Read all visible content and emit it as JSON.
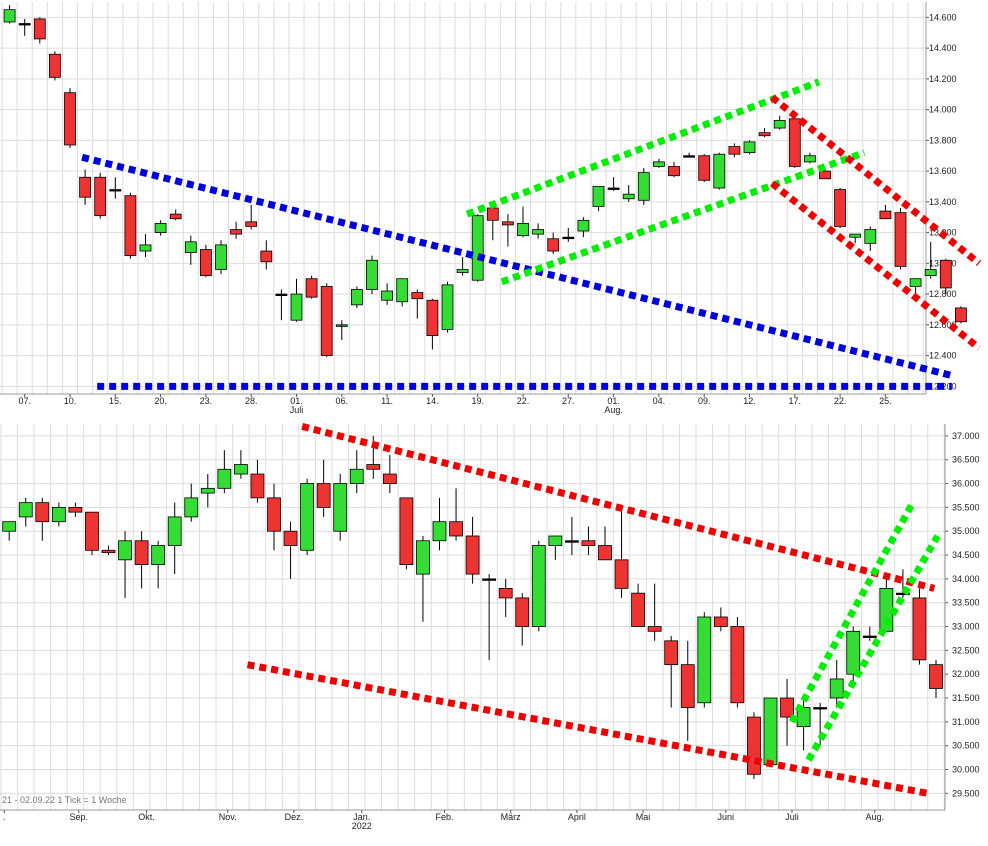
{
  "colors": {
    "up": "#33dd33",
    "down": "#ee3333",
    "wick": "#000000",
    "grid": "#dddddd",
    "blue_line": "#0000dd",
    "green_line": "#00ee00",
    "red_line": "#ee0000"
  },
  "chart_data": [
    {
      "type": "candlestick",
      "title": "",
      "ylim": [
        12150,
        14700
      ],
      "y_ticks": [
        14600,
        14400,
        14200,
        14000,
        13800,
        13600,
        13400,
        13200,
        13000,
        12800,
        12600,
        12400,
        12200
      ],
      "y_tick_labels": [
        "14.600",
        "14.400",
        "14.200",
        "14.000",
        "13.800",
        "13.600",
        "13.400",
        "13.200",
        "13.000",
        "12.800",
        "12.600",
        "12.400",
        "12.200"
      ],
      "x_tick_labels": [
        {
          "i": 1,
          "label": "07.",
          "sub": ""
        },
        {
          "i": 4,
          "label": "10.",
          "sub": ""
        },
        {
          "i": 7,
          "label": "15.",
          "sub": ""
        },
        {
          "i": 10,
          "label": "20.",
          "sub": ""
        },
        {
          "i": 13,
          "label": "23.",
          "sub": ""
        },
        {
          "i": 16,
          "label": "28.",
          "sub": ""
        },
        {
          "i": 19,
          "label": "01.",
          "sub": "Juli"
        },
        {
          "i": 22,
          "label": "06.",
          "sub": ""
        },
        {
          "i": 25,
          "label": "11.",
          "sub": ""
        },
        {
          "i": 28,
          "label": "14.",
          "sub": ""
        },
        {
          "i": 31,
          "label": "19.",
          "sub": ""
        },
        {
          "i": 34,
          "label": "22.",
          "sub": ""
        },
        {
          "i": 37,
          "label": "27.",
          "sub": ""
        },
        {
          "i": 40,
          "label": "01.",
          "sub": "Aug."
        },
        {
          "i": 43,
          "label": "04.",
          "sub": ""
        },
        {
          "i": 46,
          "label": "09.",
          "sub": ""
        },
        {
          "i": 49,
          "label": "12.",
          "sub": ""
        },
        {
          "i": 52,
          "label": "17.",
          "sub": ""
        },
        {
          "i": 55,
          "label": "22.",
          "sub": ""
        },
        {
          "i": 58,
          "label": "25.",
          "sub": ""
        }
      ],
      "candles": [
        {
          "o": 14570,
          "h": 14680,
          "l": 14560,
          "c": 14650
        },
        {
          "o": 14560,
          "h": 14590,
          "l": 14480,
          "c": 14560
        },
        {
          "o": 14590,
          "h": 14600,
          "l": 14430,
          "c": 14460
        },
        {
          "o": 14360,
          "h": 14380,
          "l": 14190,
          "c": 14210
        },
        {
          "o": 14110,
          "h": 14140,
          "l": 13750,
          "c": 13770
        },
        {
          "o": 13560,
          "h": 13610,
          "l": 13380,
          "c": 13430
        },
        {
          "o": 13560,
          "h": 13590,
          "l": 13290,
          "c": 13310
        },
        {
          "o": 13480,
          "h": 13560,
          "l": 13420,
          "c": 13480
        },
        {
          "o": 13440,
          "h": 13460,
          "l": 13030,
          "c": 13050
        },
        {
          "o": 13080,
          "h": 13190,
          "l": 13040,
          "c": 13120
        },
        {
          "o": 13200,
          "h": 13280,
          "l": 13180,
          "c": 13260
        },
        {
          "o": 13320,
          "h": 13350,
          "l": 13280,
          "c": 13290
        },
        {
          "o": 13070,
          "h": 13180,
          "l": 12990,
          "c": 13140
        },
        {
          "o": 13090,
          "h": 13120,
          "l": 12910,
          "c": 12920
        },
        {
          "o": 12960,
          "h": 13150,
          "l": 12930,
          "c": 13120
        },
        {
          "o": 13220,
          "h": 13270,
          "l": 13160,
          "c": 13190
        },
        {
          "o": 13270,
          "h": 13380,
          "l": 13220,
          "c": 13240
        },
        {
          "o": 13080,
          "h": 13150,
          "l": 12960,
          "c": 13010
        },
        {
          "o": 12800,
          "h": 12830,
          "l": 12630,
          "c": 12800
        },
        {
          "o": 12630,
          "h": 12900,
          "l": 12620,
          "c": 12800
        },
        {
          "o": 12900,
          "h": 12920,
          "l": 12770,
          "c": 12780
        },
        {
          "o": 12850,
          "h": 12870,
          "l": 12390,
          "c": 12400
        },
        {
          "o": 12600,
          "h": 12630,
          "l": 12500,
          "c": 12590
        },
        {
          "o": 12730,
          "h": 12850,
          "l": 12710,
          "c": 12830
        },
        {
          "o": 12830,
          "h": 13050,
          "l": 12800,
          "c": 13020
        },
        {
          "o": 12760,
          "h": 12870,
          "l": 12730,
          "c": 12820
        },
        {
          "o": 12750,
          "h": 12900,
          "l": 12720,
          "c": 12900
        },
        {
          "o": 12810,
          "h": 12830,
          "l": 12640,
          "c": 12770
        },
        {
          "o": 12760,
          "h": 12770,
          "l": 12440,
          "c": 12530
        },
        {
          "o": 12570,
          "h": 12880,
          "l": 12550,
          "c": 12860
        },
        {
          "o": 12940,
          "h": 13040,
          "l": 12920,
          "c": 12960
        },
        {
          "o": 12890,
          "h": 13320,
          "l": 12880,
          "c": 13310
        },
        {
          "o": 13360,
          "h": 13380,
          "l": 13150,
          "c": 13280
        },
        {
          "o": 13270,
          "h": 13320,
          "l": 13110,
          "c": 13250
        },
        {
          "o": 13180,
          "h": 13370,
          "l": 13170,
          "c": 13260
        },
        {
          "o": 13190,
          "h": 13260,
          "l": 13160,
          "c": 13220
        },
        {
          "o": 13160,
          "h": 13200,
          "l": 13060,
          "c": 13080
        },
        {
          "o": 13170,
          "h": 13230,
          "l": 13140,
          "c": 13170
        },
        {
          "o": 13210,
          "h": 13300,
          "l": 13170,
          "c": 13280
        },
        {
          "o": 13370,
          "h": 13500,
          "l": 13340,
          "c": 13500
        },
        {
          "o": 13490,
          "h": 13560,
          "l": 13470,
          "c": 13490
        },
        {
          "o": 13420,
          "h": 13510,
          "l": 13400,
          "c": 13450
        },
        {
          "o": 13410,
          "h": 13620,
          "l": 13380,
          "c": 13590
        },
        {
          "o": 13630,
          "h": 13680,
          "l": 13620,
          "c": 13660
        },
        {
          "o": 13630,
          "h": 13660,
          "l": 13560,
          "c": 13570
        },
        {
          "o": 13700,
          "h": 13720,
          "l": 13690,
          "c": 13700
        },
        {
          "o": 13700,
          "h": 13710,
          "l": 13530,
          "c": 13540
        },
        {
          "o": 13490,
          "h": 13720,
          "l": 13480,
          "c": 13710
        },
        {
          "o": 13760,
          "h": 13780,
          "l": 13690,
          "c": 13710
        },
        {
          "o": 13720,
          "h": 13800,
          "l": 13710,
          "c": 13790
        },
        {
          "o": 13850,
          "h": 13880,
          "l": 13820,
          "c": 13830
        },
        {
          "o": 13880,
          "h": 13960,
          "l": 13870,
          "c": 13930
        },
        {
          "o": 13940,
          "h": 13960,
          "l": 13620,
          "c": 13630
        },
        {
          "o": 13660,
          "h": 13720,
          "l": 13650,
          "c": 13700
        },
        {
          "o": 13600,
          "h": 13610,
          "l": 13550,
          "c": 13550
        },
        {
          "o": 13480,
          "h": 13490,
          "l": 13230,
          "c": 13240
        },
        {
          "o": 13170,
          "h": 13190,
          "l": 13130,
          "c": 13190
        },
        {
          "o": 13130,
          "h": 13240,
          "l": 13080,
          "c": 13220
        },
        {
          "o": 13340,
          "h": 13380,
          "l": 13300,
          "c": 13290
        },
        {
          "o": 13330,
          "h": 13360,
          "l": 12960,
          "c": 12980
        },
        {
          "o": 12850,
          "h": 12900,
          "l": 12800,
          "c": 12900
        },
        {
          "o": 12920,
          "h": 13140,
          "l": 12900,
          "c": 12960
        },
        {
          "o": 13020,
          "h": 13030,
          "l": 12800,
          "c": 12840
        },
        {
          "o": 12710,
          "h": 12720,
          "l": 12610,
          "c": 12620
        }
      ],
      "trendlines": [
        {
          "color": "blue_line",
          "i1": 4.8,
          "v1": 13690,
          "i2": 62.4,
          "v2": 12270
        },
        {
          "color": "blue_line",
          "i1": 5.8,
          "v1": 12200,
          "i2": 62.4,
          "v2": 12200
        },
        {
          "color": "green_line",
          "i1": 30.3,
          "v1": 13320,
          "i2": 53.6,
          "v2": 14180
        },
        {
          "color": "green_line",
          "i1": 32.6,
          "v1": 12880,
          "i2": 56.6,
          "v2": 13720
        },
        {
          "color": "red_line",
          "i1": 50.5,
          "v1": 14080,
          "i2": 64.2,
          "v2": 13000
        },
        {
          "color": "red_line",
          "i1": 50.5,
          "v1": 13520,
          "i2": 64.2,
          "v2": 12450
        }
      ]
    },
    {
      "type": "candlestick",
      "title": "",
      "ylim": [
        29150,
        37250
      ],
      "y_ticks": [
        37000,
        36500,
        36000,
        35500,
        35000,
        34500,
        34000,
        33500,
        33000,
        32500,
        32000,
        31500,
        31000,
        30500,
        30000,
        29500
      ],
      "y_tick_labels": [
        "37.000",
        "36.500",
        "36.000",
        "35.500",
        "35.000",
        "34.500",
        "34.000",
        "33.500",
        "33.000",
        "32.500",
        "32.000",
        "31.500",
        "31.000",
        "30.500",
        "30.000",
        "29.500"
      ],
      "x_tick_labels": [
        {
          "i": -0.3,
          "label": ".",
          "sub": ""
        },
        {
          "i": 4.2,
          "label": "Sep.",
          "sub": ""
        },
        {
          "i": 8.3,
          "label": "Okt.",
          "sub": ""
        },
        {
          "i": 13.2,
          "label": "Nov.",
          "sub": ""
        },
        {
          "i": 17.2,
          "label": "Dez.",
          "sub": ""
        },
        {
          "i": 21.3,
          "label": "Jan.",
          "sub": "2022"
        },
        {
          "i": 26.3,
          "label": "Feb.",
          "sub": ""
        },
        {
          "i": 30.3,
          "label": "März",
          "sub": ""
        },
        {
          "i": 34.3,
          "label": "April",
          "sub": ""
        },
        {
          "i": 38.3,
          "label": "Mai",
          "sub": ""
        },
        {
          "i": 43.3,
          "label": "Juni",
          "sub": ""
        },
        {
          "i": 47.3,
          "label": "Juli",
          "sub": ""
        },
        {
          "i": 52.3,
          "label": "Aug.",
          "sub": ""
        }
      ],
      "footer_text": "21 - 02.09.22   1 Tick = 1 Woche",
      "candles": [
        {
          "o": 35000,
          "h": 35200,
          "l": 34800,
          "c": 35200
        },
        {
          "o": 35300,
          "h": 35700,
          "l": 35100,
          "c": 35600
        },
        {
          "o": 35600,
          "h": 35700,
          "l": 34800,
          "c": 35200
        },
        {
          "o": 35200,
          "h": 35600,
          "l": 35100,
          "c": 35500
        },
        {
          "o": 35500,
          "h": 35600,
          "l": 35300,
          "c": 35400
        },
        {
          "o": 35400,
          "h": 35400,
          "l": 34500,
          "c": 34600
        },
        {
          "o": 34600,
          "h": 34700,
          "l": 34500,
          "c": 34550
        },
        {
          "o": 34400,
          "h": 35000,
          "l": 33600,
          "c": 34800
        },
        {
          "o": 34800,
          "h": 35000,
          "l": 33800,
          "c": 34300
        },
        {
          "o": 34300,
          "h": 34800,
          "l": 33800,
          "c": 34700
        },
        {
          "o": 34700,
          "h": 35600,
          "l": 34100,
          "c": 35300
        },
        {
          "o": 35300,
          "h": 36000,
          "l": 35200,
          "c": 35700
        },
        {
          "o": 35800,
          "h": 36200,
          "l": 35500,
          "c": 35900
        },
        {
          "o": 35900,
          "h": 36700,
          "l": 35800,
          "c": 36300
        },
        {
          "o": 36200,
          "h": 36700,
          "l": 36100,
          "c": 36400
        },
        {
          "o": 36200,
          "h": 36500,
          "l": 35600,
          "c": 35700
        },
        {
          "o": 35700,
          "h": 36000,
          "l": 34600,
          "c": 35000
        },
        {
          "o": 35000,
          "h": 35200,
          "l": 34000,
          "c": 34700
        },
        {
          "o": 34600,
          "h": 36100,
          "l": 34500,
          "c": 36000
        },
        {
          "o": 36000,
          "h": 36500,
          "l": 35300,
          "c": 35500
        },
        {
          "o": 35000,
          "h": 36200,
          "l": 34800,
          "c": 36000
        },
        {
          "o": 36000,
          "h": 36700,
          "l": 35800,
          "c": 36300
        },
        {
          "o": 36400,
          "h": 37000,
          "l": 36100,
          "c": 36300
        },
        {
          "o": 36200,
          "h": 36600,
          "l": 35800,
          "c": 36000
        },
        {
          "o": 35700,
          "h": 35700,
          "l": 34200,
          "c": 34300
        },
        {
          "o": 34100,
          "h": 34900,
          "l": 33100,
          "c": 34800
        },
        {
          "o": 34800,
          "h": 35700,
          "l": 34600,
          "c": 35200
        },
        {
          "o": 35200,
          "h": 35900,
          "l": 34800,
          "c": 34900
        },
        {
          "o": 34900,
          "h": 35300,
          "l": 33900,
          "c": 34100
        },
        {
          "o": 34000,
          "h": 34100,
          "l": 32300,
          "c": 34000
        },
        {
          "o": 33800,
          "h": 34000,
          "l": 33200,
          "c": 33600
        },
        {
          "o": 33600,
          "h": 33700,
          "l": 32600,
          "c": 33000
        },
        {
          "o": 33000,
          "h": 34800,
          "l": 32900,
          "c": 34700
        },
        {
          "o": 34700,
          "h": 34900,
          "l": 34400,
          "c": 34900
        },
        {
          "o": 34800,
          "h": 35300,
          "l": 34500,
          "c": 34800
        },
        {
          "o": 34800,
          "h": 35100,
          "l": 34500,
          "c": 34700
        },
        {
          "o": 34700,
          "h": 35100,
          "l": 34400,
          "c": 34400
        },
        {
          "o": 34400,
          "h": 35500,
          "l": 33600,
          "c": 33800
        },
        {
          "o": 33700,
          "h": 33900,
          "l": 33000,
          "c": 33000
        },
        {
          "o": 33000,
          "h": 33900,
          "l": 32700,
          "c": 32900
        },
        {
          "o": 32700,
          "h": 32800,
          "l": 31300,
          "c": 32200
        },
        {
          "o": 32200,
          "h": 32700,
          "l": 30600,
          "c": 31300
        },
        {
          "o": 31400,
          "h": 33300,
          "l": 31300,
          "c": 33200
        },
        {
          "o": 33200,
          "h": 33400,
          "l": 32900,
          "c": 33000
        },
        {
          "o": 33000,
          "h": 33200,
          "l": 31300,
          "c": 31400
        },
        {
          "o": 31100,
          "h": 31200,
          "l": 29800,
          "c": 29900
        },
        {
          "o": 30100,
          "h": 31500,
          "l": 30100,
          "c": 31500
        },
        {
          "o": 31500,
          "h": 31900,
          "l": 30500,
          "c": 31100
        },
        {
          "o": 30900,
          "h": 31500,
          "l": 30400,
          "c": 31300
        },
        {
          "o": 31300,
          "h": 31400,
          "l": 30500,
          "c": 31300
        },
        {
          "o": 31500,
          "h": 32300,
          "l": 31300,
          "c": 31900
        },
        {
          "o": 32000,
          "h": 33000,
          "l": 31800,
          "c": 32900
        },
        {
          "o": 32800,
          "h": 33000,
          "l": 32700,
          "c": 32800
        },
        {
          "o": 32900,
          "h": 34000,
          "l": 32900,
          "c": 33800
        },
        {
          "o": 33700,
          "h": 34200,
          "l": 33600,
          "c": 33700
        },
        {
          "o": 33600,
          "h": 33800,
          "l": 32200,
          "c": 32300
        },
        {
          "o": 32200,
          "h": 32300,
          "l": 31500,
          "c": 31700
        }
      ],
      "trendlines": [
        {
          "color": "red_line",
          "i1": 17.7,
          "v1": 37200,
          "i2": 55.9,
          "v2": 33800
        },
        {
          "color": "red_line",
          "i1": 14.4,
          "v1": 32200,
          "i2": 55.5,
          "v2": 29500
        },
        {
          "color": "green_line",
          "i1": 47.3,
          "v1": 31000,
          "i2": 54.6,
          "v2": 35600
        },
        {
          "color": "green_line",
          "i1": 48.3,
          "v1": 30200,
          "i2": 56.1,
          "v2": 34900
        }
      ]
    }
  ]
}
